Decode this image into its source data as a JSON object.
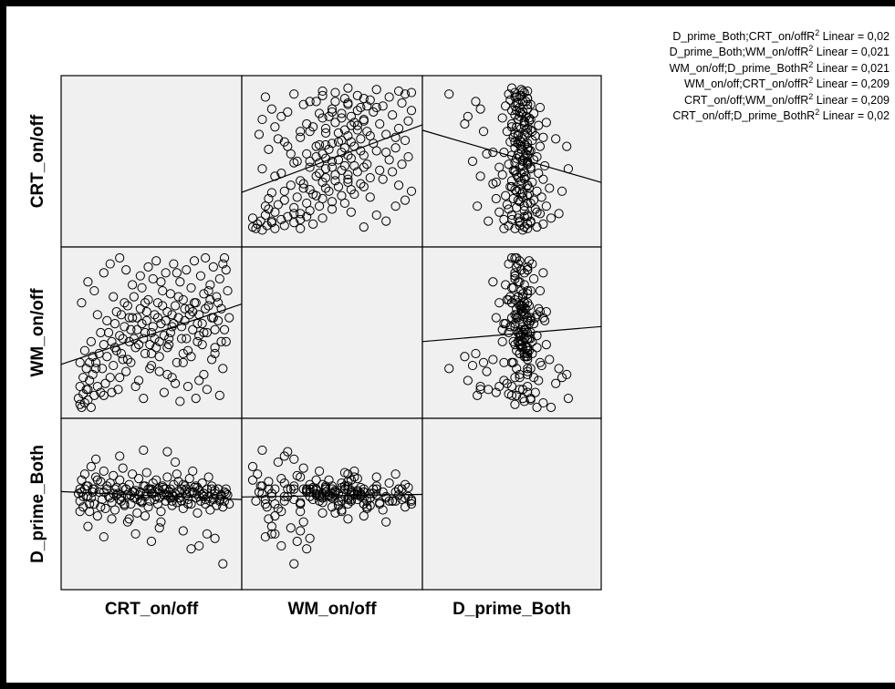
{
  "chart_data": {
    "type": "scatter",
    "variables": [
      "CRT_on/off",
      "WM_on/off",
      "D_prime_Both"
    ],
    "legend": [
      {
        "pair": "D_prime_Both;CRT_on/off",
        "label": "Linear",
        "r2": "0,02"
      },
      {
        "pair": "D_prime_Both;WM_on/off",
        "label": "Linear",
        "r2": "0,021"
      },
      {
        "pair": "WM_on/off;D_prime_Both",
        "label": "Linear",
        "r2": "0,021"
      },
      {
        "pair": "WM_on/off;CRT_on/off",
        "label": "Linear",
        "r2": "0,209"
      },
      {
        "pair": "CRT_on/off;WM_on/off",
        "label": "Linear",
        "r2": "0,209"
      },
      {
        "pair": "CRT_on/off;D_prime_Both",
        "label": "Linear",
        "r2": "0,02"
      }
    ],
    "data_units_note": "",
    "points": [
      [
        0.04,
        0.06,
        0.57
      ],
      [
        0.05,
        0.02,
        0.52
      ],
      [
        0.06,
        0.0,
        0.66
      ],
      [
        0.07,
        0.09,
        0.48
      ],
      [
        0.08,
        0.03,
        0.7
      ],
      [
        0.09,
        0.12,
        0.55
      ],
      [
        0.1,
        0.05,
        0.62
      ],
      [
        0.11,
        0.18,
        0.45
      ],
      [
        0.12,
        0.0,
        0.75
      ],
      [
        0.13,
        0.22,
        0.6
      ],
      [
        0.14,
        0.08,
        0.5
      ],
      [
        0.15,
        0.3,
        0.68
      ],
      [
        0.16,
        0.14,
        0.42
      ],
      [
        0.17,
        0.36,
        0.58
      ],
      [
        0.18,
        0.1,
        0.65
      ],
      [
        0.19,
        0.26,
        0.53
      ],
      [
        0.2,
        0.42,
        0.72
      ],
      [
        0.21,
        0.16,
        0.47
      ],
      [
        0.22,
        0.34,
        0.6
      ],
      [
        0.23,
        0.5,
        0.55
      ],
      [
        0.24,
        0.2,
        0.64
      ],
      [
        0.25,
        0.44,
        0.51
      ],
      [
        0.26,
        0.28,
        0.69
      ],
      [
        0.27,
        0.56,
        0.46
      ],
      [
        0.28,
        0.38,
        0.61
      ],
      [
        0.29,
        0.12,
        0.57
      ],
      [
        0.3,
        0.48,
        0.66
      ],
      [
        0.31,
        0.62,
        0.52
      ],
      [
        0.32,
        0.32,
        0.74
      ],
      [
        0.33,
        0.54,
        0.49
      ],
      [
        0.34,
        0.24,
        0.6
      ],
      [
        0.35,
        0.68,
        0.56
      ],
      [
        0.36,
        0.44,
        0.63
      ],
      [
        0.37,
        0.3,
        0.5
      ],
      [
        0.38,
        0.6,
        0.7
      ],
      [
        0.39,
        0.74,
        0.54
      ],
      [
        0.4,
        0.4,
        0.59
      ],
      [
        0.41,
        0.52,
        0.44
      ],
      [
        0.42,
        0.18,
        0.67
      ],
      [
        0.43,
        0.66,
        0.58
      ],
      [
        0.44,
        0.8,
        0.51
      ],
      [
        0.45,
        0.46,
        0.62
      ],
      [
        0.46,
        0.36,
        0.55
      ],
      [
        0.47,
        0.58,
        0.71
      ],
      [
        0.48,
        0.72,
        0.48
      ],
      [
        0.49,
        0.26,
        0.6
      ],
      [
        0.5,
        0.5,
        0.57
      ],
      [
        0.51,
        0.86,
        0.64
      ],
      [
        0.52,
        0.62,
        0.53
      ],
      [
        0.53,
        0.4,
        0.66
      ],
      [
        0.54,
        0.7,
        0.5
      ],
      [
        0.55,
        0.34,
        0.59
      ],
      [
        0.56,
        0.56,
        0.45
      ],
      [
        0.57,
        0.78,
        0.62
      ],
      [
        0.58,
        0.48,
        0.56
      ],
      [
        0.59,
        0.9,
        0.52
      ],
      [
        0.6,
        0.64,
        0.68
      ],
      [
        0.61,
        0.42,
        0.55
      ],
      [
        0.62,
        0.76,
        0.6
      ],
      [
        0.63,
        0.54,
        0.49
      ],
      [
        0.64,
        0.96,
        0.63
      ],
      [
        0.65,
        0.68,
        0.57
      ],
      [
        0.66,
        0.3,
        0.51
      ],
      [
        0.67,
        0.6,
        0.65
      ],
      [
        0.68,
        0.84,
        0.54
      ],
      [
        0.69,
        0.46,
        0.6
      ],
      [
        0.7,
        0.72,
        0.47
      ],
      [
        0.71,
        0.58,
        0.62
      ],
      [
        0.72,
        0.92,
        0.56
      ],
      [
        0.73,
        0.38,
        0.53
      ],
      [
        0.74,
        0.66,
        0.67
      ],
      [
        0.75,
        0.8,
        0.5
      ],
      [
        0.76,
        0.52,
        0.58
      ],
      [
        0.77,
        0.98,
        0.61
      ],
      [
        0.78,
        0.7,
        0.54
      ],
      [
        0.79,
        0.44,
        0.44
      ],
      [
        0.8,
        0.62,
        0.59
      ],
      [
        0.81,
        0.88,
        0.52
      ],
      [
        0.82,
        0.56,
        0.64
      ],
      [
        0.83,
        0.76,
        0.57
      ],
      [
        0.84,
        1.0,
        0.5
      ],
      [
        0.85,
        0.5,
        0.6
      ],
      [
        0.86,
        0.68,
        0.55
      ],
      [
        0.87,
        0.82,
        0.46
      ],
      [
        0.88,
        0.6,
        0.62
      ],
      [
        0.89,
        0.94,
        0.53
      ],
      [
        0.9,
        0.4,
        0.57
      ],
      [
        0.91,
        0.74,
        0.49
      ],
      [
        0.92,
        0.58,
        0.6
      ],
      [
        0.93,
        0.86,
        0.52
      ],
      [
        0.94,
        0.66,
        0.56
      ],
      [
        0.95,
        0.96,
        0.48
      ],
      [
        0.96,
        0.52,
        0.58
      ],
      [
        0.1,
        0.12,
        0.35
      ],
      [
        0.2,
        0.08,
        0.28
      ],
      [
        0.3,
        0.2,
        0.82
      ],
      [
        0.4,
        0.14,
        0.3
      ],
      [
        0.5,
        0.28,
        0.25
      ],
      [
        0.6,
        0.22,
        0.85
      ],
      [
        0.7,
        0.3,
        0.32
      ],
      [
        0.8,
        0.18,
        0.22
      ],
      [
        0.9,
        0.36,
        0.27
      ],
      [
        0.15,
        0.26,
        0.8
      ],
      [
        0.25,
        0.1,
        0.4
      ],
      [
        0.35,
        0.32,
        0.38
      ],
      [
        0.45,
        0.06,
        0.86
      ],
      [
        0.55,
        0.24,
        0.34
      ],
      [
        0.65,
        0.16,
        0.78
      ],
      [
        0.75,
        0.34,
        0.2
      ],
      [
        0.85,
        0.12,
        0.3
      ],
      [
        0.95,
        0.26,
        0.1
      ],
      [
        0.05,
        0.3,
        0.45
      ],
      [
        0.08,
        0.38,
        0.6
      ],
      [
        0.12,
        0.44,
        0.54
      ],
      [
        0.18,
        0.5,
        0.48
      ],
      [
        0.22,
        0.58,
        0.62
      ],
      [
        0.28,
        0.64,
        0.56
      ],
      [
        0.33,
        0.7,
        0.5
      ],
      [
        0.38,
        0.82,
        0.58
      ],
      [
        0.43,
        0.88,
        0.52
      ],
      [
        0.48,
        0.94,
        0.6
      ],
      [
        0.53,
        0.98,
        0.55
      ],
      [
        0.58,
        0.1,
        0.6
      ],
      [
        0.63,
        0.2,
        0.52
      ],
      [
        0.68,
        0.04,
        0.58
      ],
      [
        0.73,
        0.14,
        0.5
      ],
      [
        0.78,
        0.06,
        0.62
      ],
      [
        0.83,
        0.22,
        0.55
      ],
      [
        0.88,
        0.32,
        0.6
      ],
      [
        0.93,
        0.08,
        0.53
      ],
      [
        0.97,
        0.44,
        0.57
      ],
      [
        0.99,
        0.6,
        0.5
      ],
      [
        0.98,
        0.78,
        0.56
      ],
      [
        0.97,
        0.92,
        0.6
      ],
      [
        0.96,
        1.0,
        0.52
      ],
      [
        0.2,
        0.9,
        0.58
      ],
      [
        0.24,
        0.96,
        0.54
      ],
      [
        0.14,
        0.78,
        0.6
      ],
      [
        0.1,
        0.84,
        0.55
      ],
      [
        0.06,
        0.7,
        0.58
      ],
      [
        0.3,
        1.0,
        0.53
      ],
      [
        0.34,
        0.92,
        0.6
      ],
      [
        0.26,
        0.74,
        0.57
      ],
      [
        0.36,
        0.6,
        0.4
      ],
      [
        0.46,
        0.7,
        0.42
      ],
      [
        0.56,
        0.84,
        0.38
      ],
      [
        0.66,
        0.9,
        0.7
      ],
      [
        0.76,
        0.64,
        0.72
      ],
      [
        0.86,
        0.78,
        0.68
      ],
      [
        0.16,
        0.62,
        0.66
      ],
      [
        0.42,
        0.42,
        0.56
      ],
      [
        0.52,
        0.46,
        0.58
      ],
      [
        0.62,
        0.5,
        0.54
      ],
      [
        0.72,
        0.46,
        0.6
      ],
      [
        0.82,
        0.42,
        0.56
      ],
      [
        0.44,
        0.56,
        0.52
      ],
      [
        0.54,
        0.6,
        0.6
      ],
      [
        0.64,
        0.56,
        0.55
      ],
      [
        0.74,
        0.62,
        0.58
      ],
      [
        0.84,
        0.66,
        0.53
      ],
      [
        0.47,
        0.64,
        0.57
      ],
      [
        0.57,
        0.68,
        0.61
      ],
      [
        0.67,
        0.74,
        0.54
      ],
      [
        0.77,
        0.7,
        0.58
      ],
      [
        0.87,
        0.72,
        0.52
      ],
      [
        0.5,
        0.36,
        0.6
      ],
      [
        0.6,
        0.4,
        0.56
      ],
      [
        0.7,
        0.36,
        0.63
      ],
      [
        0.8,
        0.48,
        0.55
      ],
      [
        0.9,
        0.52,
        0.59
      ],
      [
        0.32,
        0.46,
        0.61
      ],
      [
        0.37,
        0.52,
        0.56
      ],
      [
        0.41,
        0.6,
        0.53
      ],
      [
        0.46,
        0.5,
        0.62
      ],
      [
        0.51,
        0.54,
        0.57
      ],
      [
        0.55,
        0.44,
        0.54
      ],
      [
        0.59,
        0.58,
        0.6
      ],
      [
        0.63,
        0.62,
        0.56
      ],
      [
        0.69,
        0.54,
        0.52
      ],
      [
        0.71,
        0.66,
        0.59
      ],
      [
        0.79,
        0.56,
        0.61
      ],
      [
        0.83,
        0.5,
        0.57
      ],
      [
        0.89,
        0.6,
        0.54
      ],
      [
        0.92,
        0.7,
        0.6
      ],
      [
        0.94,
        0.44,
        0.55
      ],
      [
        0.27,
        0.4,
        0.6
      ],
      [
        0.31,
        0.36,
        0.55
      ],
      [
        0.39,
        0.46,
        0.58
      ],
      [
        0.49,
        0.42,
        0.52
      ],
      [
        0.61,
        0.46,
        0.58
      ],
      [
        0.05,
        0.14,
        0.6
      ],
      [
        0.07,
        0.2,
        0.55
      ],
      [
        0.09,
        0.26,
        0.62
      ],
      [
        0.11,
        0.3,
        0.5
      ],
      [
        0.13,
        0.34,
        0.58
      ]
    ]
  }
}
